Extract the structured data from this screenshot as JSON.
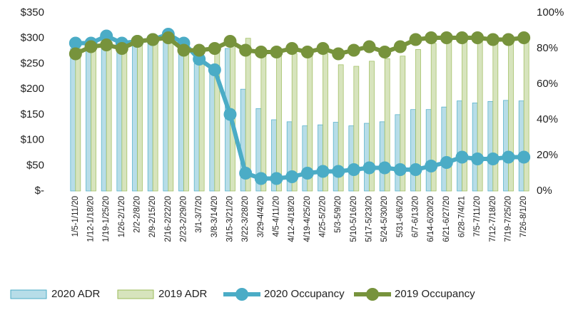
{
  "chart_data": {
    "type": "bar-line",
    "categories": [
      "1/5-1/11/20",
      "1/12-1/18/20",
      "1/19-1/25/20",
      "1/26-2/1/20",
      "2/2-2/8/20",
      "2/9-2/15/20",
      "2/16-2/22/20",
      "2/23-2/29/20",
      "3/1-3/7/20",
      "3/8-3/14/20",
      "3/15-3/21/20",
      "3/22-3/28/20",
      "3/29-4/4/20",
      "4/5-4/11/20",
      "4/12-4/18/20",
      "4/19-4/25/20",
      "4/25-5/2/20",
      "5/3-5/9/20",
      "5/10-5/16/20",
      "5/17-5/23/20",
      "5/24-5/30/20",
      "5/31-6/6/20",
      "6/7-6/13/20",
      "6/14-6/20/20",
      "6/21-6/27/20",
      "6/28-7/4/21",
      "7/5-7/11/20",
      "7/12-7/18/20",
      "7/19-7/25/20",
      "7/26-8/1/20"
    ],
    "series": [
      {
        "name": "2020 ADR",
        "type": "bar",
        "color": "#b7dde8",
        "values": [
          280,
          285,
          290,
          285,
          290,
          300,
          305,
          290,
          250,
          240,
          280,
          200,
          162,
          140,
          136,
          128,
          130,
          135,
          128,
          133,
          136,
          150,
          160,
          160,
          165,
          177,
          173,
          176,
          178,
          177
        ]
      },
      {
        "name": "2019 ADR",
        "type": "bar",
        "color": "#d7e4bd",
        "values": [
          280,
          285,
          285,
          285,
          295,
          300,
          305,
          295,
          260,
          280,
          285,
          300,
          270,
          270,
          270,
          270,
          270,
          248,
          245,
          255,
          260,
          265,
          278,
          290,
          295,
          300,
          300,
          295,
          295,
          295
        ]
      },
      {
        "name": "2020 Occupancy",
        "type": "line",
        "axis": "y2",
        "color": "#4bacc6",
        "values": [
          83,
          83,
          87,
          83,
          84,
          85,
          88,
          83,
          74,
          68,
          43,
          10,
          7,
          7,
          8,
          10,
          11,
          11,
          12,
          13,
          13,
          12,
          12,
          14,
          16,
          19,
          18,
          18,
          19,
          19
        ]
      },
      {
        "name": "2019 Occupancy",
        "type": "line",
        "axis": "y2",
        "color": "#77933c",
        "values": [
          77,
          81,
          82,
          80,
          84,
          85,
          86,
          79,
          79,
          80,
          84,
          79,
          78,
          78,
          80,
          78,
          80,
          77,
          79,
          81,
          78,
          81,
          85,
          86,
          86,
          86,
          86,
          85,
          85,
          86
        ]
      }
    ],
    "ylim": [
      0,
      350
    ],
    "yticks": [
      {
        "value": 0,
        "label": "$-"
      },
      {
        "value": 50,
        "label": "$50"
      },
      {
        "value": 100,
        "label": "$100"
      },
      {
        "value": 150,
        "label": "$150"
      },
      {
        "value": 200,
        "label": "$200"
      },
      {
        "value": 250,
        "label": "$250"
      },
      {
        "value": 300,
        "label": "$300"
      },
      {
        "value": 350,
        "label": "$350"
      }
    ],
    "y2lim": [
      0,
      100
    ],
    "y2ticks": [
      {
        "value": 0,
        "label": "0%"
      },
      {
        "value": 20,
        "label": "20%"
      },
      {
        "value": 40,
        "label": "40%"
      },
      {
        "value": 60,
        "label": "60%"
      },
      {
        "value": 80,
        "label": "80%"
      },
      {
        "value": 100,
        "label": "100%"
      }
    ],
    "legend": "bottom"
  }
}
